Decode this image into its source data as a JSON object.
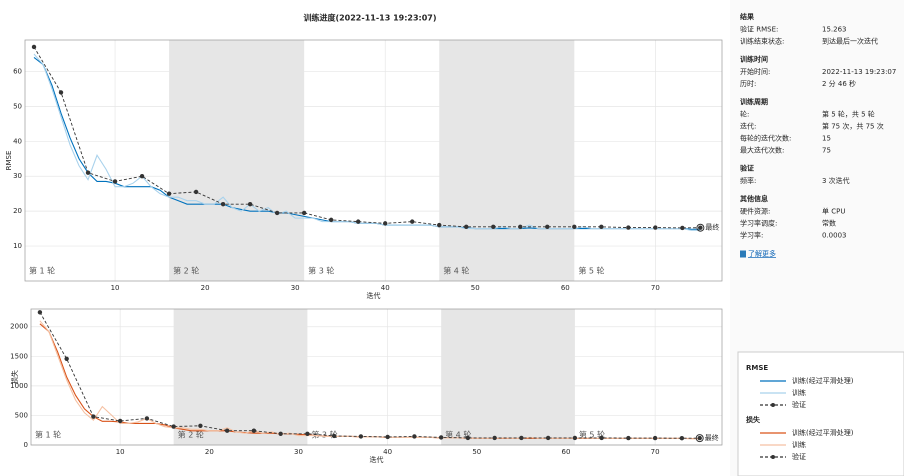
{
  "title": "训练进度(2022-11-13 19:23:07)",
  "chart_data": [
    {
      "type": "line",
      "ylabel": "RMSE",
      "xlabel": "迭代",
      "legend_title": "RMSE",
      "final_label": "最终",
      "xlim": [
        0,
        77.4
      ],
      "ylim": [
        0,
        69
      ],
      "xticks": [
        10,
        20,
        30,
        40,
        50,
        60,
        70
      ],
      "yticks": [
        10,
        20,
        30,
        40,
        50,
        60
      ],
      "grid": true,
      "epochs": [
        {
          "label": "第 1 轮",
          "start": 0
        },
        {
          "label": "第 2 轮",
          "start": 16
        },
        {
          "label": "第 3 轮",
          "start": 31
        },
        {
          "label": "第 4 轮",
          "start": 46
        },
        {
          "label": "第 5 轮",
          "start": 61
        }
      ],
      "x": [
        1,
        2,
        3,
        4,
        5,
        6,
        7,
        8,
        9,
        10,
        11,
        12,
        13,
        14,
        15,
        16,
        17,
        18,
        19,
        20,
        21,
        22,
        23,
        24,
        25,
        26,
        27,
        28,
        29,
        30,
        31,
        32,
        33,
        34,
        35,
        36,
        37,
        38,
        39,
        40,
        41,
        42,
        43,
        44,
        45,
        46,
        47,
        48,
        49,
        50,
        51,
        52,
        53,
        54,
        55,
        56,
        57,
        58,
        59,
        60,
        61,
        62,
        63,
        64,
        65,
        66,
        67,
        68,
        69,
        70,
        71,
        72,
        73,
        74,
        75
      ],
      "series": [
        {
          "name": "训练(经过平滑处理)",
          "color": "#0072bd",
          "values": [
            64,
            62,
            56,
            48,
            41,
            35,
            31,
            28.5,
            28.5,
            28,
            27,
            27,
            27,
            27,
            26,
            24,
            23,
            22,
            22,
            22,
            22,
            22,
            21,
            20.5,
            20,
            20,
            20,
            19.5,
            19.5,
            19,
            18.5,
            18,
            17.5,
            17,
            17,
            17,
            16.5,
            16.5,
            16.5,
            16,
            16,
            16,
            16,
            16,
            16,
            15.5,
            15.5,
            15.5,
            15.2,
            15,
            15,
            15,
            15,
            15,
            15,
            15.2,
            15,
            15,
            15,
            15,
            15,
            15,
            15,
            15,
            15,
            15,
            15,
            15,
            15,
            15,
            15,
            15,
            15,
            14.8,
            14.8
          ]
        },
        {
          "name": "训练",
          "color": "#a9d2ec",
          "values": [
            65,
            62,
            55,
            47,
            39,
            33,
            29,
            36,
            32,
            27,
            27,
            28,
            30,
            27,
            25,
            24,
            24,
            23,
            23,
            22,
            22,
            24,
            21,
            20,
            22,
            20,
            21,
            19,
            20,
            18,
            18,
            18,
            17,
            17,
            17,
            17,
            16.5,
            16.5,
            16.5,
            16,
            16,
            16,
            16,
            16,
            16,
            15.5,
            15.5,
            15.5,
            15,
            15,
            15,
            15,
            15.5,
            15,
            15,
            16,
            15,
            15,
            15,
            15,
            15,
            15.5,
            15,
            15,
            15,
            15,
            15,
            15,
            15,
            15,
            15,
            15,
            15,
            14.5,
            14.5
          ]
        },
        {
          "name": "验证",
          "color": "#333333",
          "dashed": true,
          "x": [
            1,
            4,
            7,
            10,
            13,
            16,
            19,
            22,
            25,
            28,
            31,
            34,
            37,
            40,
            43,
            46,
            49,
            52,
            55,
            58,
            61,
            64,
            67,
            70,
            73,
            75
          ],
          "values": [
            67,
            54,
            31,
            28.5,
            30,
            25,
            25.5,
            22,
            22,
            19.5,
            19.5,
            17.5,
            17,
            16.5,
            17,
            16,
            15.5,
            15.5,
            15.5,
            15.5,
            15.5,
            15.5,
            15.3,
            15.3,
            15.2,
            15.263
          ]
        }
      ]
    },
    {
      "type": "line",
      "ylabel": "损失",
      "xlabel": "迭代",
      "legend_title": "损失",
      "final_label": "最终",
      "xlim": [
        0,
        77.5
      ],
      "ylim": [
        0,
        2300
      ],
      "xticks": [
        10,
        20,
        30,
        40,
        50,
        60,
        70
      ],
      "yticks": [
        0,
        500,
        1000,
        1500,
        2000
      ],
      "grid": true,
      "epochs": [
        {
          "label": "第 1 轮",
          "start": 0
        },
        {
          "label": "第 2 轮",
          "start": 16
        },
        {
          "label": "第 3 轮",
          "start": 31
        },
        {
          "label": "第 4 轮",
          "start": 46
        },
        {
          "label": "第 5 轮",
          "start": 61
        }
      ],
      "x": [
        1,
        2,
        3,
        4,
        5,
        6,
        7,
        8,
        9,
        10,
        11,
        12,
        13,
        14,
        15,
        16,
        17,
        18,
        19,
        20,
        21,
        22,
        23,
        24,
        25,
        26,
        27,
        28,
        29,
        30,
        31,
        32,
        33,
        34,
        35,
        36,
        37,
        38,
        39,
        40,
        41,
        42,
        43,
        44,
        45,
        46,
        47,
        48,
        49,
        50,
        51,
        52,
        53,
        54,
        55,
        56,
        57,
        58,
        59,
        60,
        61,
        62,
        63,
        64,
        65,
        66,
        67,
        68,
        69,
        70,
        71,
        72,
        73,
        74,
        75
      ],
      "series": [
        {
          "name": "训练(经过平滑处理)",
          "color": "#d95319",
          "values": [
            2050,
            1920,
            1570,
            1150,
            840,
            610,
            480,
            400,
            400,
            390,
            365,
            365,
            365,
            365,
            340,
            290,
            265,
            240,
            240,
            240,
            240,
            240,
            220,
            210,
            200,
            200,
            200,
            190,
            190,
            180,
            170,
            160,
            150,
            145,
            145,
            145,
            136,
            136,
            136,
            128,
            128,
            128,
            128,
            128,
            128,
            120,
            120,
            120,
            115,
            112,
            112,
            112,
            112,
            112,
            112,
            115,
            112,
            112,
            112,
            112,
            112,
            112,
            112,
            112,
            112,
            112,
            112,
            112,
            112,
            112,
            112,
            112,
            112,
            110,
            110
          ]
        },
        {
          "name": "训练",
          "color": "#f5c1a3",
          "values": [
            2100,
            1920,
            1510,
            1100,
            760,
            545,
            420,
            650,
            510,
            365,
            365,
            390,
            450,
            365,
            310,
            290,
            290,
            265,
            265,
            240,
            240,
            290,
            220,
            200,
            240,
            200,
            220,
            180,
            200,
            160,
            160,
            160,
            145,
            145,
            145,
            145,
            136,
            136,
            136,
            128,
            128,
            128,
            128,
            128,
            128,
            120,
            120,
            120,
            112,
            112,
            112,
            112,
            120,
            112,
            112,
            128,
            112,
            112,
            112,
            112,
            112,
            120,
            112,
            112,
            112,
            112,
            112,
            112,
            112,
            112,
            112,
            112,
            112,
            105,
            105
          ]
        },
        {
          "name": "验证",
          "color": "#333333",
          "dashed": true,
          "x": [
            1,
            4,
            7,
            10,
            13,
            16,
            19,
            22,
            25,
            28,
            31,
            34,
            37,
            40,
            43,
            46,
            49,
            52,
            55,
            58,
            61,
            64,
            67,
            70,
            73,
            75
          ],
          "values": [
            2244,
            1458,
            480,
            406,
            450,
            312,
            325,
            242,
            242,
            190,
            190,
            153,
            145,
            136,
            145,
            128,
            120,
            120,
            120,
            120,
            120,
            120,
            117,
            117,
            115,
            116.5
          ]
        }
      ]
    }
  ],
  "panel": {
    "sections": [
      {
        "heading": "结果",
        "rows": [
          [
            "验证 RMSE:",
            "15.263"
          ],
          [
            "训练结束状态:",
            "到达最后一次迭代"
          ]
        ]
      },
      {
        "heading": "训练时间",
        "rows": [
          [
            "开始时间:",
            "2022-11-13 19:23:07"
          ],
          [
            "历时:",
            "2 分 46 秒"
          ]
        ]
      },
      {
        "heading": "训练周期",
        "rows": [
          [
            "轮:",
            "第 5 轮，共 5 轮"
          ],
          [
            "迭代:",
            "第 75 次，共 75 次"
          ],
          [
            "每轮的迭代次数:",
            "15"
          ],
          [
            "最大迭代次数:",
            "75"
          ]
        ]
      },
      {
        "heading": "验证",
        "rows": [
          [
            "频率:",
            "3 次迭代"
          ]
        ]
      },
      {
        "heading": "其他信息",
        "rows": [
          [
            "硬件资源:",
            "单 CPU"
          ],
          [
            "学习率调度:",
            "常数"
          ],
          [
            "学习率:",
            "0.0003"
          ]
        ]
      }
    ],
    "link": "了解更多"
  }
}
